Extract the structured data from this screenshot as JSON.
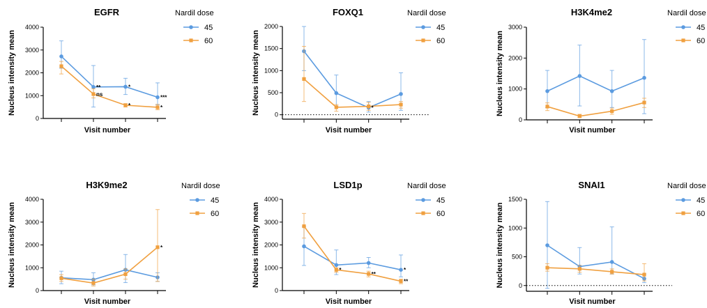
{
  "colors": {
    "dose45": "#5B9BE0",
    "dose60": "#F0A040"
  },
  "chart_data": [
    {
      "type": "line",
      "title": "EGFR",
      "xlabel": "Visit number",
      "ylabel": "Nucleus intensity mean",
      "ylim": [
        0,
        4000
      ],
      "yticks": [
        "0",
        "1000",
        "2000",
        "3000",
        "4000"
      ],
      "legend_title": "Nardil dose",
      "dotted_zero": false,
      "x": [
        1,
        2,
        3,
        4
      ],
      "series": [
        {
          "name": "45",
          "values": [
            2720,
            1380,
            1390,
            930
          ],
          "err_lo": [
            2200,
            500,
            1050,
            600
          ],
          "err_hi": [
            3400,
            2320,
            1760,
            1560
          ]
        },
        {
          "name": "60",
          "values": [
            2290,
            1070,
            580,
            490
          ],
          "err_lo": [
            1950,
            900,
            500,
            380
          ],
          "err_hi": [
            2500,
            1300,
            650,
            620
          ]
        }
      ],
      "annotations": [
        {
          "series": 0,
          "point": 1,
          "text": "**"
        },
        {
          "series": 0,
          "point": 2,
          "text": "*"
        },
        {
          "series": 0,
          "point": 3,
          "text": "***"
        },
        {
          "series": 1,
          "point": 1,
          "text": "ns"
        },
        {
          "series": 1,
          "point": 2,
          "text": "*"
        },
        {
          "series": 1,
          "point": 3,
          "text": "*"
        }
      ]
    },
    {
      "type": "line",
      "title": "FOXQ1",
      "xlabel": "Visit number",
      "ylabel": "Nucleus intensity mean",
      "ylim": [
        -100,
        2000
      ],
      "yticks": [
        "0",
        "500",
        "1000",
        "1500",
        "2000"
      ],
      "legend_title": "Nardil dose",
      "dotted_zero": true,
      "x": [
        1,
        2,
        3,
        4
      ],
      "series": [
        {
          "name": "45",
          "values": [
            1440,
            490,
            160,
            470
          ],
          "err_lo": [
            1000,
            200,
            60,
            100
          ],
          "err_hi": [
            2000,
            900,
            300,
            950
          ]
        },
        {
          "name": "60",
          "values": [
            810,
            170,
            190,
            230
          ],
          "err_lo": [
            300,
            80,
            100,
            150
          ],
          "err_hi": [
            1550,
            230,
            280,
            300
          ]
        }
      ],
      "annotations": [
        {
          "series": 0,
          "point": 2,
          "text": "*"
        }
      ]
    },
    {
      "type": "line",
      "title": "H3K4me2",
      "xlabel": "Visit number",
      "ylabel": "Nucleus intensity mean",
      "ylim": [
        0,
        3000
      ],
      "yticks": [
        "0",
        "1000",
        "2000",
        "3000"
      ],
      "legend_title": "Nardil dose",
      "dotted_zero": false,
      "x": [
        1,
        2,
        3,
        4
      ],
      "series": [
        {
          "name": "45",
          "values": [
            930,
            1420,
            930,
            1360
          ],
          "err_lo": [
            400,
            450,
            400,
            200
          ],
          "err_hi": [
            1600,
            2420,
            1600,
            2600
          ]
        },
        {
          "name": "60",
          "values": [
            430,
            120,
            280,
            560
          ],
          "err_lo": [
            300,
            80,
            180,
            400
          ],
          "err_hi": [
            550,
            180,
            380,
            700
          ]
        }
      ],
      "annotations": []
    },
    {
      "type": "line",
      "title": "H3K9me2",
      "xlabel": "Visit number",
      "ylabel": "Nucleus intensity mean",
      "ylim": [
        0,
        4000
      ],
      "yticks": [
        "0",
        "1000",
        "2000",
        "3000",
        "4000"
      ],
      "legend_title": "Nardil dose",
      "dotted_zero": false,
      "x": [
        1,
        2,
        3,
        4
      ],
      "series": [
        {
          "name": "45",
          "values": [
            560,
            480,
            910,
            580
          ],
          "err_lo": [
            300,
            250,
            350,
            400
          ],
          "err_hi": [
            850,
            780,
            1580,
            780
          ]
        },
        {
          "name": "60",
          "values": [
            540,
            330,
            720,
            1900
          ],
          "err_lo": [
            400,
            200,
            500,
            400
          ],
          "err_hi": [
            700,
            500,
            950,
            3550
          ]
        }
      ],
      "annotations": [
        {
          "series": 1,
          "point": 3,
          "text": "*"
        }
      ]
    },
    {
      "type": "line",
      "title": "LSD1p",
      "xlabel": "Visit number",
      "ylabel": "Nucleus intensity mean",
      "ylim": [
        0,
        4000
      ],
      "yticks": [
        "0",
        "1000",
        "2000",
        "3000",
        "4000"
      ],
      "legend_title": "Nardil dose",
      "dotted_zero": false,
      "x": [
        1,
        2,
        3,
        4
      ],
      "series": [
        {
          "name": "45",
          "values": [
            1940,
            1120,
            1210,
            910
          ],
          "err_lo": [
            1100,
            700,
            1000,
            600
          ],
          "err_hi": [
            2800,
            1780,
            1450,
            1560
          ]
        },
        {
          "name": "60",
          "values": [
            2820,
            910,
            730,
            410
          ],
          "err_lo": [
            2300,
            800,
            600,
            300
          ],
          "err_hi": [
            3380,
            1000,
            850,
            500
          ]
        }
      ],
      "annotations": [
        {
          "series": 0,
          "point": 3,
          "text": "*"
        },
        {
          "series": 1,
          "point": 1,
          "text": "*"
        },
        {
          "series": 1,
          "point": 2,
          "text": "**"
        },
        {
          "series": 1,
          "point": 3,
          "text": "**"
        }
      ]
    },
    {
      "type": "line",
      "title": "SNAI1",
      "xlabel": "Visit number",
      "ylabel": "Nucleus intensity mean",
      "ylim": [
        -100,
        1500
      ],
      "yticks": [
        "0",
        "500",
        "1000",
        "1500"
      ],
      "legend_title": "Nardil dose",
      "dotted_zero": true,
      "x": [
        1,
        2,
        3,
        4
      ],
      "series": [
        {
          "name": "45",
          "values": [
            700,
            330,
            410,
            120
          ],
          "err_lo": [
            -50,
            200,
            200,
            50
          ],
          "err_hi": [
            1460,
            660,
            1020,
            200
          ]
        },
        {
          "name": "60",
          "values": [
            310,
            290,
            240,
            190
          ],
          "err_lo": [
            250,
            230,
            200,
            80
          ],
          "err_hi": [
            380,
            350,
            290,
            380
          ]
        }
      ],
      "annotations": []
    }
  ]
}
